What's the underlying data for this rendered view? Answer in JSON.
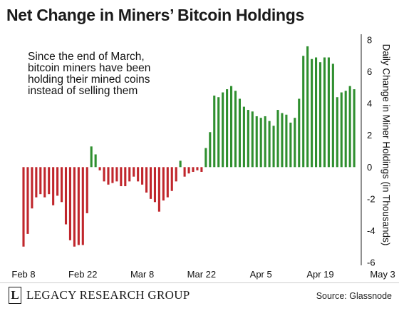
{
  "chart_data": {
    "type": "bar",
    "title": "Net Change in Miners’ Bitcoin Holdings",
    "annotation": "Since the end of March, bitcoin miners have been holding their mined coins instead of selling them",
    "ylabel": "Daily Change in Miner Holdings (in Thousands)",
    "xlabel": "",
    "ylim": [
      -6,
      8
    ],
    "yticks": [
      "8",
      "6",
      "4",
      "2",
      "0",
      "-2",
      "-4",
      "-6"
    ],
    "xticks": [
      "Feb 8",
      "Feb 22",
      "Mar 8",
      "Mar 22",
      "Apr 5",
      "Apr 19",
      "May 3"
    ],
    "grid": false,
    "colors": {
      "positive": "#2f8f2f",
      "negative": "#c0262c"
    },
    "values": [
      -5.0,
      -4.2,
      -2.6,
      -1.9,
      -1.7,
      -1.9,
      -1.7,
      -2.4,
      -1.8,
      -2.2,
      -3.6,
      -4.6,
      -5.0,
      -4.9,
      -4.9,
      -2.9,
      1.3,
      0.8,
      -0.2,
      -0.9,
      -1.1,
      -1.0,
      -0.9,
      -1.2,
      -1.2,
      -0.9,
      -0.6,
      -0.9,
      -1.1,
      -1.6,
      -2.0,
      -2.2,
      -2.8,
      -2.1,
      -1.9,
      -1.5,
      -0.9,
      0.4,
      -0.6,
      -0.4,
      -0.3,
      -0.2,
      -0.3,
      1.2,
      2.2,
      4.5,
      4.4,
      4.7,
      4.9,
      5.1,
      4.8,
      4.3,
      3.8,
      3.6,
      3.5,
      3.2,
      3.1,
      3.2,
      2.9,
      2.6,
      3.6,
      3.4,
      3.3,
      2.8,
      3.1,
      4.3,
      7.0,
      7.6,
      6.8,
      6.9,
      6.6,
      6.9,
      6.9,
      6.5,
      4.4,
      4.7,
      4.8,
      5.1,
      4.9
    ]
  },
  "footer": {
    "logo_mark": "L",
    "logo_text": "LEGACY RESEARCH GROUP",
    "source": "Source: Glassnode"
  }
}
